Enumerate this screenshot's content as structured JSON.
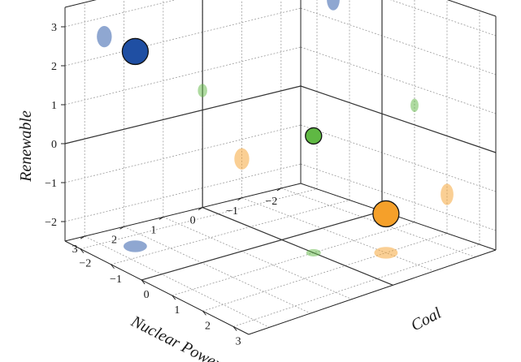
{
  "chart_data": {
    "type": "scatter",
    "projection": "3d",
    "axes": {
      "x": {
        "label": "Coal",
        "ticks": [
          "−2",
          "−1",
          "0",
          "1",
          "2",
          "3"
        ],
        "range": [
          -2.5,
          3.5
        ]
      },
      "y": {
        "label": "Nuclear Power",
        "ticks": [
          "−2",
          "−1",
          "0",
          "1",
          "2",
          "3"
        ],
        "range": [
          -2.5,
          3.5
        ]
      },
      "z": {
        "label": "Renewable",
        "ticks": [
          "−2",
          "−1",
          "0",
          "1",
          "2",
          "3"
        ],
        "range": [
          -2.5,
          3.5
        ]
      }
    },
    "grid": true,
    "points": [
      {
        "x": -1.5,
        "y": 2.5,
        "z": 2.5,
        "color": "#1f4fa3",
        "size": "large"
      },
      {
        "x": 2.0,
        "y": -1.0,
        "z": -1.5,
        "color": "#f5a02a",
        "size": "large"
      },
      {
        "x": 1.0,
        "y": 0.0,
        "z": 0.5,
        "color": "#5fb843",
        "size": "medium"
      }
    ],
    "projections": {
      "x_wall": {
        "color_opacity": 0.5
      },
      "y_wall": {
        "color_opacity": 0.5
      },
      "floor": {
        "color_opacity": 0.5
      }
    }
  }
}
